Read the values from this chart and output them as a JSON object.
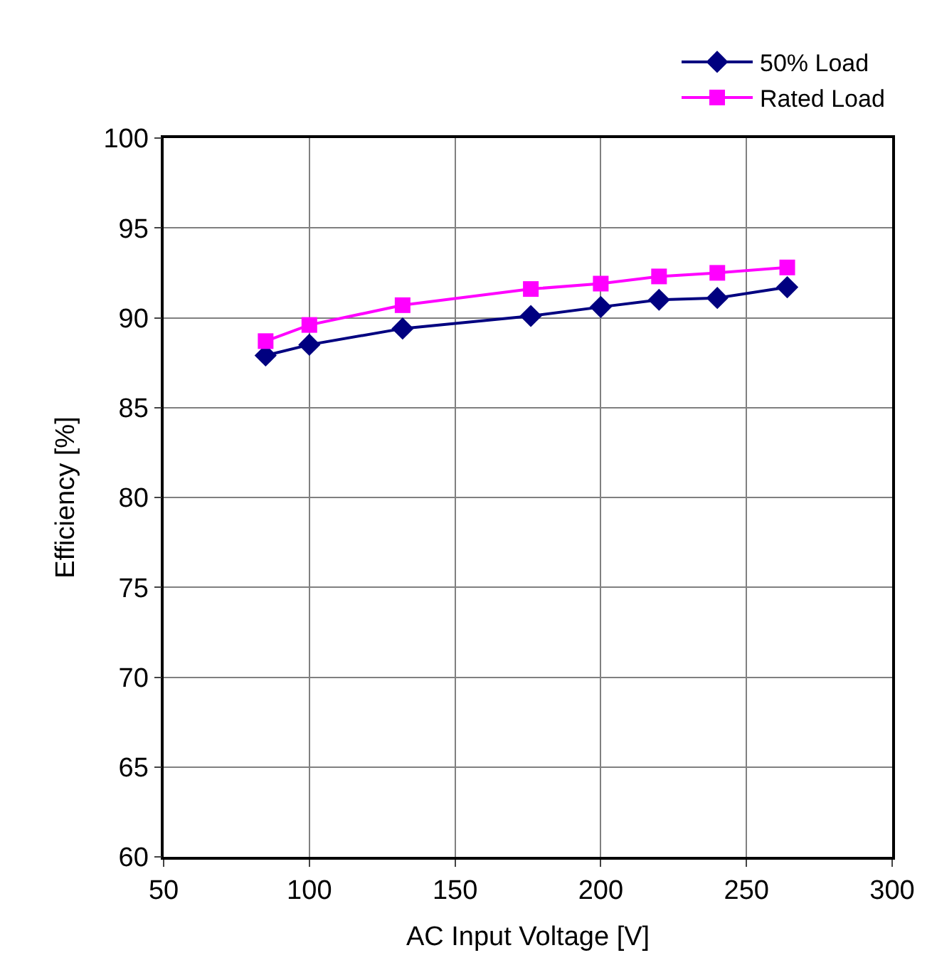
{
  "chart_data": {
    "type": "line",
    "xlabel": "AC Input Voltage [V]",
    "ylabel": "Efficiency [%]",
    "x": [
      85,
      100,
      132,
      176,
      200,
      220,
      240,
      264
    ],
    "series": [
      {
        "name": "50% Load",
        "color": "#000080",
        "marker": "diamond",
        "values": [
          87.9,
          88.5,
          89.4,
          90.1,
          90.6,
          91.0,
          91.1,
          91.7
        ]
      },
      {
        "name": "Rated Load",
        "color": "#ff00ff",
        "marker": "square",
        "values": [
          88.7,
          89.6,
          90.7,
          91.6,
          91.9,
          92.3,
          92.5,
          92.8
        ]
      }
    ],
    "xlim": [
      50,
      300
    ],
    "xticks": [
      50,
      100,
      150,
      200,
      250,
      300
    ],
    "ylim": [
      60,
      100
    ],
    "yticks": [
      60,
      65,
      70,
      75,
      80,
      85,
      90,
      95,
      100
    ],
    "grid": true,
    "legend": "top right",
    "line_style": "solid"
  }
}
